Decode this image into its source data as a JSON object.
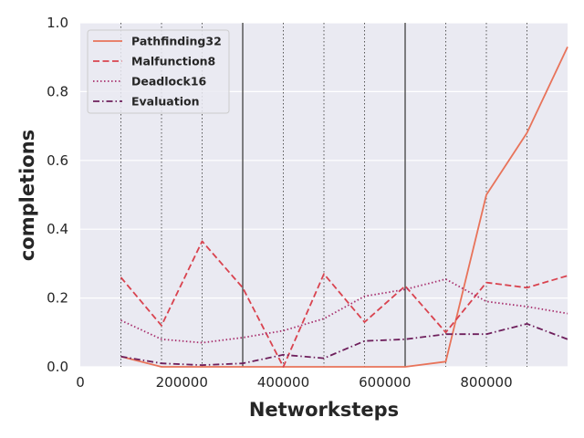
{
  "chart_data": {
    "type": "line",
    "xlabel": "Networksteps",
    "ylabel": "completions",
    "xlim": [
      0,
      960000
    ],
    "ylim": [
      0,
      1.0
    ],
    "xticks": [
      0,
      200000,
      400000,
      600000,
      800000
    ],
    "xtick_labels": [
      "0",
      "200000",
      "400000",
      "600000",
      "800000"
    ],
    "yticks": [
      0.0,
      0.2,
      0.4,
      0.6,
      0.8,
      1.0
    ],
    "ytick_labels": [
      "0.0",
      "0.2",
      "0.4",
      "0.6",
      "0.8",
      "1.0"
    ],
    "grid": true,
    "legend_position": "top-left",
    "vlines": [
      {
        "x": 80000,
        "style": "dotted"
      },
      {
        "x": 160000,
        "style": "dotted"
      },
      {
        "x": 240000,
        "style": "dotted"
      },
      {
        "x": 320000,
        "style": "solid"
      },
      {
        "x": 400000,
        "style": "dotted"
      },
      {
        "x": 480000,
        "style": "dotted"
      },
      {
        "x": 560000,
        "style": "dotted"
      },
      {
        "x": 640000,
        "style": "solid"
      },
      {
        "x": 720000,
        "style": "dotted"
      },
      {
        "x": 800000,
        "style": "dotted"
      },
      {
        "x": 880000,
        "style": "dotted"
      }
    ],
    "x": [
      80000,
      160000,
      240000,
      320000,
      400000,
      480000,
      560000,
      640000,
      720000,
      800000,
      880000,
      960000
    ],
    "series": [
      {
        "name": "Pathfinding32",
        "color": "#e8735a",
        "dash": "solid",
        "values": [
          0.03,
          0.0,
          0.0,
          0.0,
          0.0,
          0.0,
          0.0,
          0.0,
          0.015,
          0.5,
          0.68,
          0.93
        ]
      },
      {
        "name": "Malfunction8",
        "color": "#d9434f",
        "dash": "dashed",
        "values": [
          0.26,
          0.12,
          0.365,
          0.23,
          0.0,
          0.27,
          0.13,
          0.235,
          0.1,
          0.245,
          0.23,
          0.265
        ]
      },
      {
        "name": "Deadlock16",
        "color": "#a8306e",
        "dash": "dotted",
        "values": [
          0.135,
          0.08,
          0.07,
          0.085,
          0.105,
          0.14,
          0.205,
          0.225,
          0.255,
          0.19,
          0.175,
          0.155
        ]
      },
      {
        "name": "Evaluation",
        "color": "#6e1f5c",
        "dash": "dashdot",
        "values": [
          0.03,
          0.01,
          0.005,
          0.01,
          0.035,
          0.025,
          0.075,
          0.08,
          0.095,
          0.095,
          0.125,
          0.08
        ]
      }
    ]
  }
}
